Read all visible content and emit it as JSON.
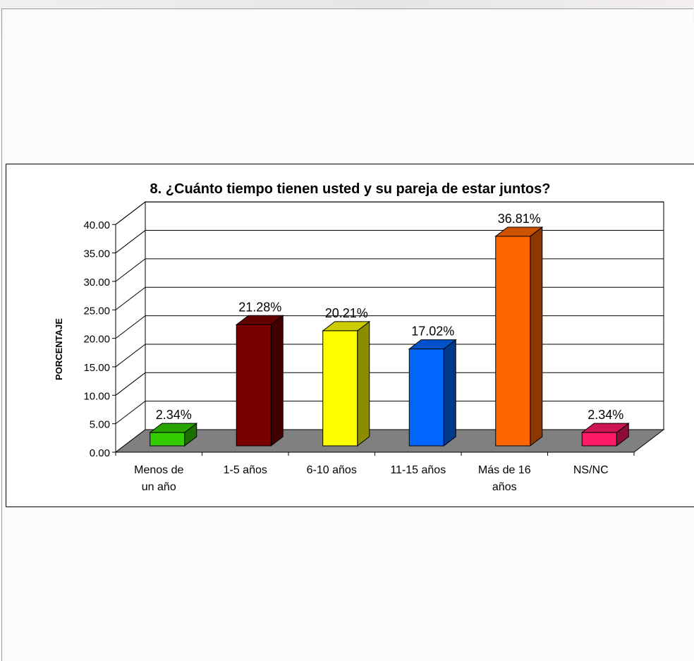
{
  "chart_data": {
    "type": "bar",
    "title": "8. ¿Cuánto tiempo tienen usted y su pareja de estar juntos?",
    "ylabel": "PORCENTAJE",
    "xlabel": "",
    "ylim": [
      0,
      40
    ],
    "y_ticks": [
      "0.00",
      "5.00",
      "10.00",
      "15.00",
      "20.00",
      "25.00",
      "30.00",
      "35.00",
      "40.00"
    ],
    "categories": [
      [
        "Menos de",
        "un año"
      ],
      [
        "1-5 años"
      ],
      [
        "6-10 años"
      ],
      [
        "11-15 años"
      ],
      [
        "Más de 16",
        "años"
      ],
      [
        "NS/NC"
      ]
    ],
    "values": [
      2.34,
      21.28,
      20.21,
      17.02,
      36.81,
      2.34
    ],
    "data_labels": [
      "2.34%",
      "21.28%",
      "20.21%",
      "17.02%",
      "36.81%",
      "2.34%"
    ],
    "colors": [
      "#33cc00",
      "#7a0000",
      "#ffff00",
      "#0066ff",
      "#ff6600",
      "#ff1a66"
    ],
    "grid": true,
    "three_d": true,
    "floor_color": "#808080"
  }
}
